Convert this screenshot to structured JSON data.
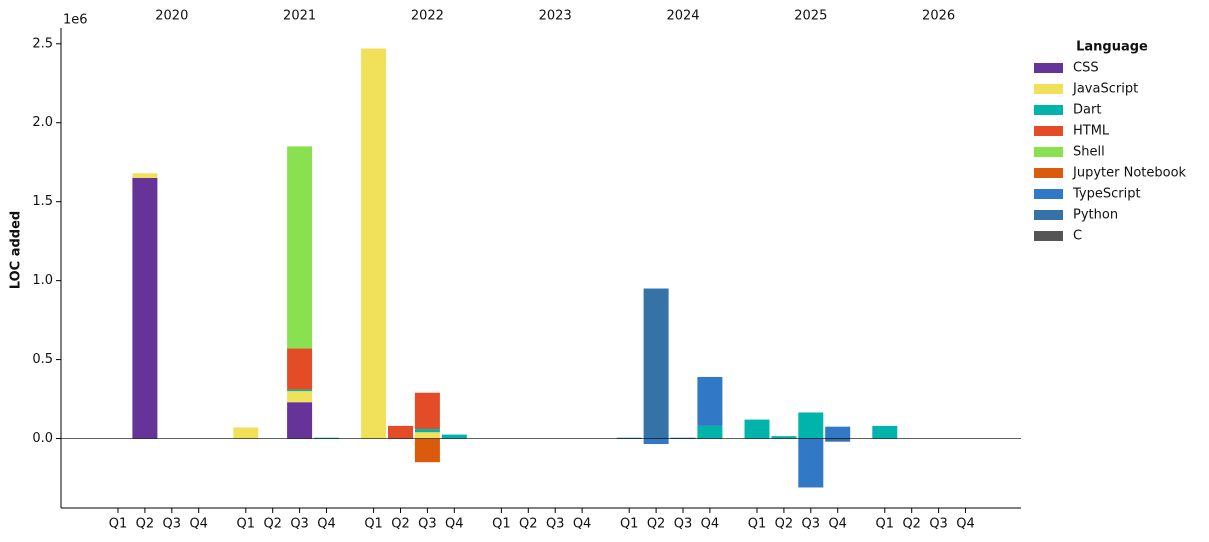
{
  "chart_data": {
    "type": "bar",
    "stacked": true,
    "y_label": "LOC added",
    "y_offset_label": "1e6",
    "legend_title": "Language",
    "legend_position": "right",
    "years": [
      "2020",
      "2021",
      "2022",
      "2023",
      "2024",
      "2025",
      "2026"
    ],
    "categories": [
      "Q1",
      "Q2",
      "Q3",
      "Q4",
      "Q1",
      "Q2",
      "Q3",
      "Q4",
      "Q1",
      "Q2",
      "Q3",
      "Q4",
      "Q1",
      "Q2",
      "Q3",
      "Q4",
      "Q1",
      "Q2",
      "Q3",
      "Q4",
      "Q1",
      "Q2",
      "Q3",
      "Q4",
      "Q1",
      "Q2",
      "Q3",
      "Q4"
    ],
    "ylim": [
      -0.44,
      2.6
    ],
    "yticks": [
      {
        "value": 0,
        "label": "0.0"
      },
      {
        "value": 0.5,
        "label": "0.5"
      },
      {
        "value": 1,
        "label": "1.0"
      },
      {
        "value": 1.5,
        "label": "1.5"
      },
      {
        "value": 2,
        "label": "2.0"
      },
      {
        "value": 2.5,
        "label": "2.5"
      }
    ],
    "series": [
      {
        "name": "CSS",
        "color": "#663399",
        "values": [
          null,
          1.65,
          null,
          null,
          null,
          null,
          0.23,
          null,
          null,
          null,
          null,
          null,
          null,
          null,
          null,
          null,
          null,
          null,
          null,
          null,
          null,
          null,
          null,
          null,
          null,
          null,
          null,
          null
        ]
      },
      {
        "name": "JavaScript",
        "color": "#f1e05a",
        "values": [
          null,
          0.03,
          null,
          null,
          0.07,
          null,
          0.07,
          null,
          2.47,
          null,
          0.04,
          null,
          null,
          null,
          null,
          null,
          null,
          null,
          null,
          null,
          null,
          null,
          null,
          null,
          null,
          null,
          null,
          null
        ]
      },
      {
        "name": "Dart",
        "color": "#00b4ab",
        "values": [
          null,
          null,
          null,
          null,
          null,
          null,
          0.01,
          0.005,
          null,
          null,
          0.02,
          0.025,
          null,
          null,
          null,
          null,
          null,
          null,
          null,
          0.08,
          0.12,
          0.015,
          0.165,
          null,
          0.08,
          null,
          null,
          null
        ]
      },
      {
        "name": "HTML",
        "color": "#e34c26",
        "values": [
          null,
          null,
          null,
          null,
          null,
          null,
          0.26,
          null,
          null,
          0.08,
          0.23,
          null,
          null,
          null,
          null,
          null,
          null,
          null,
          null,
          null,
          null,
          null,
          null,
          null,
          null,
          null,
          null,
          null
        ]
      },
      {
        "name": "Shell",
        "color": "#89e051",
        "values": [
          null,
          null,
          null,
          null,
          null,
          null,
          1.28,
          null,
          null,
          null,
          null,
          null,
          null,
          null,
          null,
          null,
          null,
          null,
          null,
          null,
          null,
          null,
          null,
          null,
          null,
          null,
          null,
          null
        ]
      },
      {
        "name": "Jupyter Notebook",
        "color": "#da5b0b",
        "values": [
          null,
          null,
          null,
          null,
          null,
          null,
          null,
          null,
          null,
          null,
          -0.15,
          null,
          null,
          null,
          null,
          null,
          null,
          null,
          null,
          null,
          null,
          null,
          null,
          null,
          null,
          null,
          null,
          null
        ]
      },
      {
        "name": "TypeScript",
        "color": "#3178c6",
        "values": [
          null,
          null,
          null,
          null,
          null,
          null,
          null,
          null,
          null,
          null,
          null,
          null,
          null,
          null,
          null,
          null,
          null,
          -0.035,
          null,
          0.31,
          null,
          null,
          -0.31,
          0.075,
          null,
          null,
          null,
          null
        ]
      },
      {
        "name": "Python",
        "color": "#3572a5",
        "values": [
          null,
          null,
          null,
          null,
          null,
          null,
          null,
          null,
          null,
          null,
          null,
          null,
          null,
          null,
          null,
          null,
          0.005,
          0.95,
          0.005,
          null,
          null,
          null,
          null,
          -0.02,
          null,
          null,
          null,
          null
        ]
      },
      {
        "name": "C",
        "color": "#555555",
        "values": [
          null,
          null,
          null,
          null,
          null,
          null,
          null,
          null,
          null,
          null,
          null,
          null,
          null,
          null,
          null,
          null,
          null,
          null,
          null,
          null,
          null,
          null,
          null,
          null,
          null,
          null,
          null,
          null
        ]
      }
    ]
  }
}
